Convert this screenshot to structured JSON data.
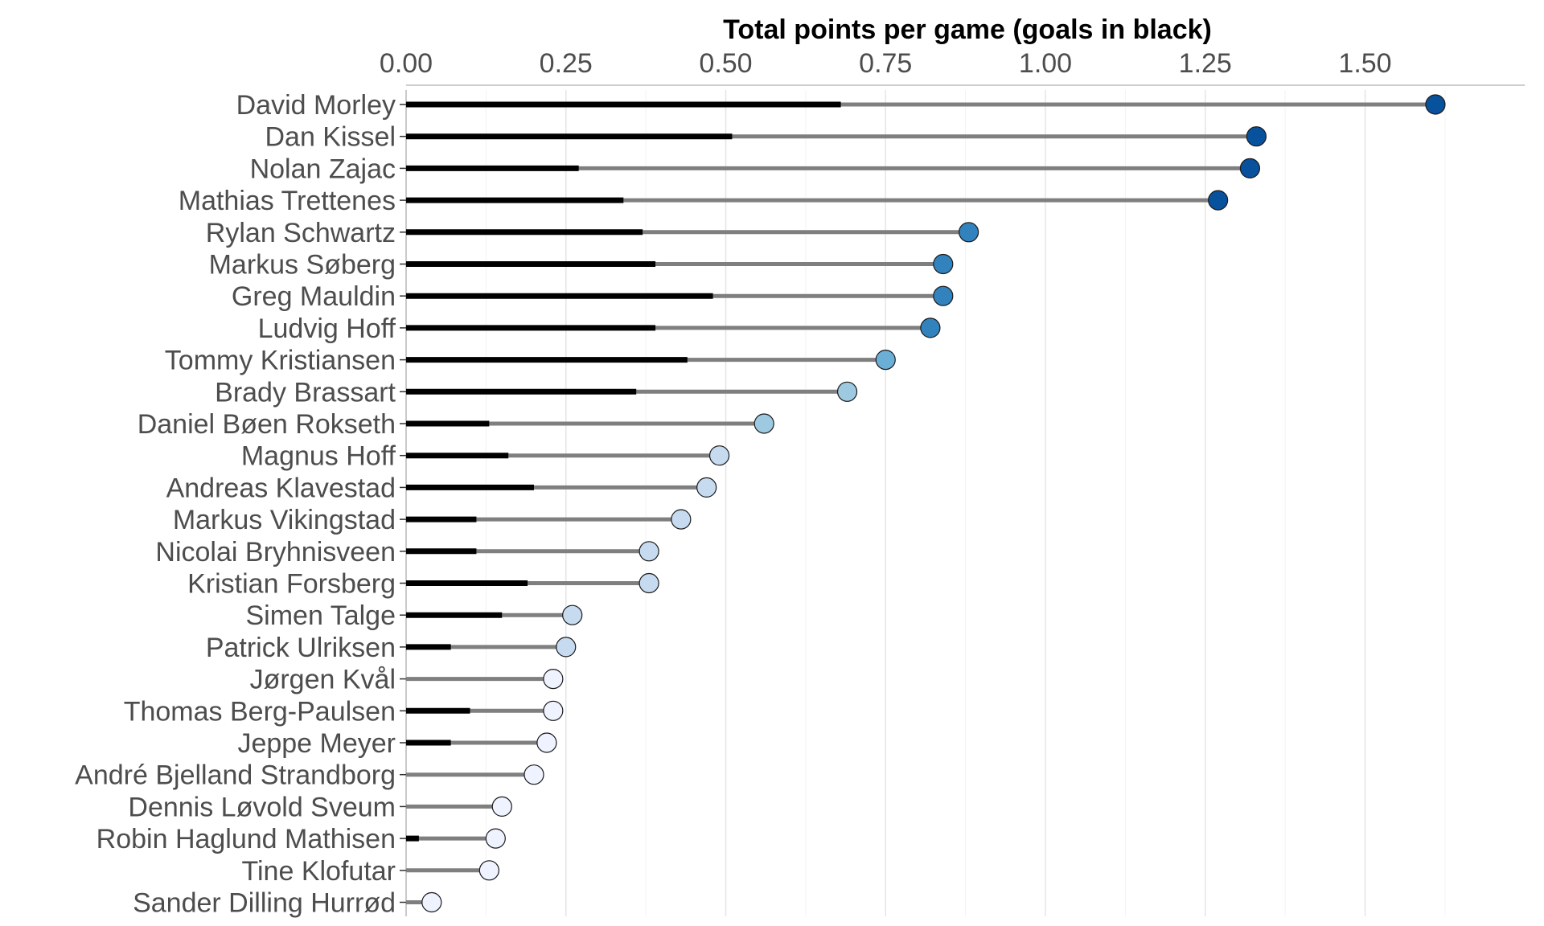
{
  "chart_data": {
    "type": "lollipop",
    "title": "Total points per game (goals in black)",
    "xlim": [
      0,
      1.75
    ],
    "x_ticks": [
      0.0,
      0.25,
      0.5,
      0.75,
      1.0,
      1.25,
      1.5
    ],
    "x_tick_labels": [
      "0.00",
      "0.25",
      "0.50",
      "0.75",
      "1.00",
      "1.25",
      "1.50"
    ],
    "grid": true,
    "axis_position": "top",
    "colors": {
      "goals_bar": "#000000",
      "points_line": "#7f7f7f",
      "gridline": "#e5e5e5",
      "dot_scale": [
        "#eff3ff",
        "#c6dbef",
        "#9ecae1",
        "#6baed6",
        "#3182bd",
        "#08519c"
      ]
    },
    "players": [
      {
        "name": "David Morley",
        "points_per_game": 1.61,
        "goals_per_game": 0.68
      },
      {
        "name": "Dan Kissel",
        "points_per_game": 1.33,
        "goals_per_game": 0.51
      },
      {
        "name": "Nolan Zajac",
        "points_per_game": 1.32,
        "goals_per_game": 0.27
      },
      {
        "name": "Mathias Trettenes",
        "points_per_game": 1.27,
        "goals_per_game": 0.34
      },
      {
        "name": "Rylan Schwartz",
        "points_per_game": 0.88,
        "goals_per_game": 0.37
      },
      {
        "name": "Markus Søberg",
        "points_per_game": 0.84,
        "goals_per_game": 0.39
      },
      {
        "name": "Greg Mauldin",
        "points_per_game": 0.84,
        "goals_per_game": 0.48
      },
      {
        "name": "Ludvig Hoff",
        "points_per_game": 0.82,
        "goals_per_game": 0.39
      },
      {
        "name": "Tommy Kristiansen",
        "points_per_game": 0.75,
        "goals_per_game": 0.44
      },
      {
        "name": "Brady Brassart",
        "points_per_game": 0.69,
        "goals_per_game": 0.36
      },
      {
        "name": "Daniel Bøen Rokseth",
        "points_per_game": 0.56,
        "goals_per_game": 0.13
      },
      {
        "name": "Magnus Hoff",
        "points_per_game": 0.49,
        "goals_per_game": 0.16
      },
      {
        "name": "Andreas Klavestad",
        "points_per_game": 0.47,
        "goals_per_game": 0.2
      },
      {
        "name": "Markus Vikingstad",
        "points_per_game": 0.43,
        "goals_per_game": 0.11
      },
      {
        "name": "Nicolai Bryhnisveen",
        "points_per_game": 0.38,
        "goals_per_game": 0.11
      },
      {
        "name": "Kristian Forsberg",
        "points_per_game": 0.38,
        "goals_per_game": 0.19
      },
      {
        "name": "Simen Talge",
        "points_per_game": 0.26,
        "goals_per_game": 0.15
      },
      {
        "name": "Patrick Ulriksen",
        "points_per_game": 0.25,
        "goals_per_game": 0.07
      },
      {
        "name": "Jørgen Kvål",
        "points_per_game": 0.23,
        "goals_per_game": 0
      },
      {
        "name": "Thomas Berg-Paulsen",
        "points_per_game": 0.23,
        "goals_per_game": 0.1
      },
      {
        "name": "Jeppe Meyer",
        "points_per_game": 0.22,
        "goals_per_game": 0.07
      },
      {
        "name": "André Bjelland Strandborg",
        "points_per_game": 0.2,
        "goals_per_game": 0
      },
      {
        "name": "Dennis Løvold Sveum",
        "points_per_game": 0.15,
        "goals_per_game": 0
      },
      {
        "name": "Robin Haglund Mathisen",
        "points_per_game": 0.14,
        "goals_per_game": 0.02
      },
      {
        "name": "Tine Klofutar",
        "points_per_game": 0.13,
        "goals_per_game": 0
      },
      {
        "name": "Sander Dilling Hurrød",
        "points_per_game": 0.04,
        "goals_per_game": 0
      }
    ]
  }
}
